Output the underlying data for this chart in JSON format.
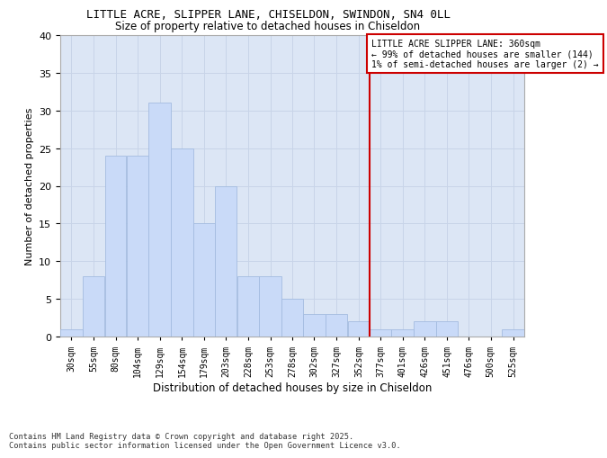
{
  "title1": "LITTLE ACRE, SLIPPER LANE, CHISELDON, SWINDON, SN4 0LL",
  "title2": "Size of property relative to detached houses in Chiseldon",
  "xlabel": "Distribution of detached houses by size in Chiseldon",
  "ylabel": "Number of detached properties",
  "bin_labels": [
    "30sqm",
    "55sqm",
    "80sqm",
    "104sqm",
    "129sqm",
    "154sqm",
    "179sqm",
    "203sqm",
    "228sqm",
    "253sqm",
    "278sqm",
    "302sqm",
    "327sqm",
    "352sqm",
    "377sqm",
    "401sqm",
    "426sqm",
    "451sqm",
    "476sqm",
    "500sqm",
    "525sqm"
  ],
  "values": [
    1,
    8,
    24,
    24,
    31,
    25,
    15,
    20,
    8,
    8,
    5,
    3,
    3,
    2,
    1,
    1,
    2,
    2,
    0,
    0,
    1
  ],
  "bar_color": "#c9daf8",
  "bar_edge_color": "#a4bce0",
  "grid_color": "#c8d4e8",
  "bg_color": "#dce6f5",
  "annotation_text": "LITTLE ACRE SLIPPER LANE: 360sqm\n← 99% of detached houses are smaller (144)\n1% of semi-detached houses are larger (2) →",
  "annotation_box_color": "#ffffff",
  "annotation_box_edge": "#cc0000",
  "vline_color": "#cc0000",
  "vline_x_index": 13,
  "footnote": "Contains HM Land Registry data © Crown copyright and database right 2025.\nContains public sector information licensed under the Open Government Licence v3.0.",
  "ylim": [
    0,
    40
  ],
  "yticks": [
    0,
    5,
    10,
    15,
    20,
    25,
    30,
    35,
    40
  ],
  "bin_edges_values": [
    30,
    55,
    80,
    104,
    129,
    154,
    179,
    203,
    228,
    253,
    278,
    302,
    327,
    352,
    377,
    401,
    426,
    451,
    476,
    500,
    525,
    550
  ]
}
